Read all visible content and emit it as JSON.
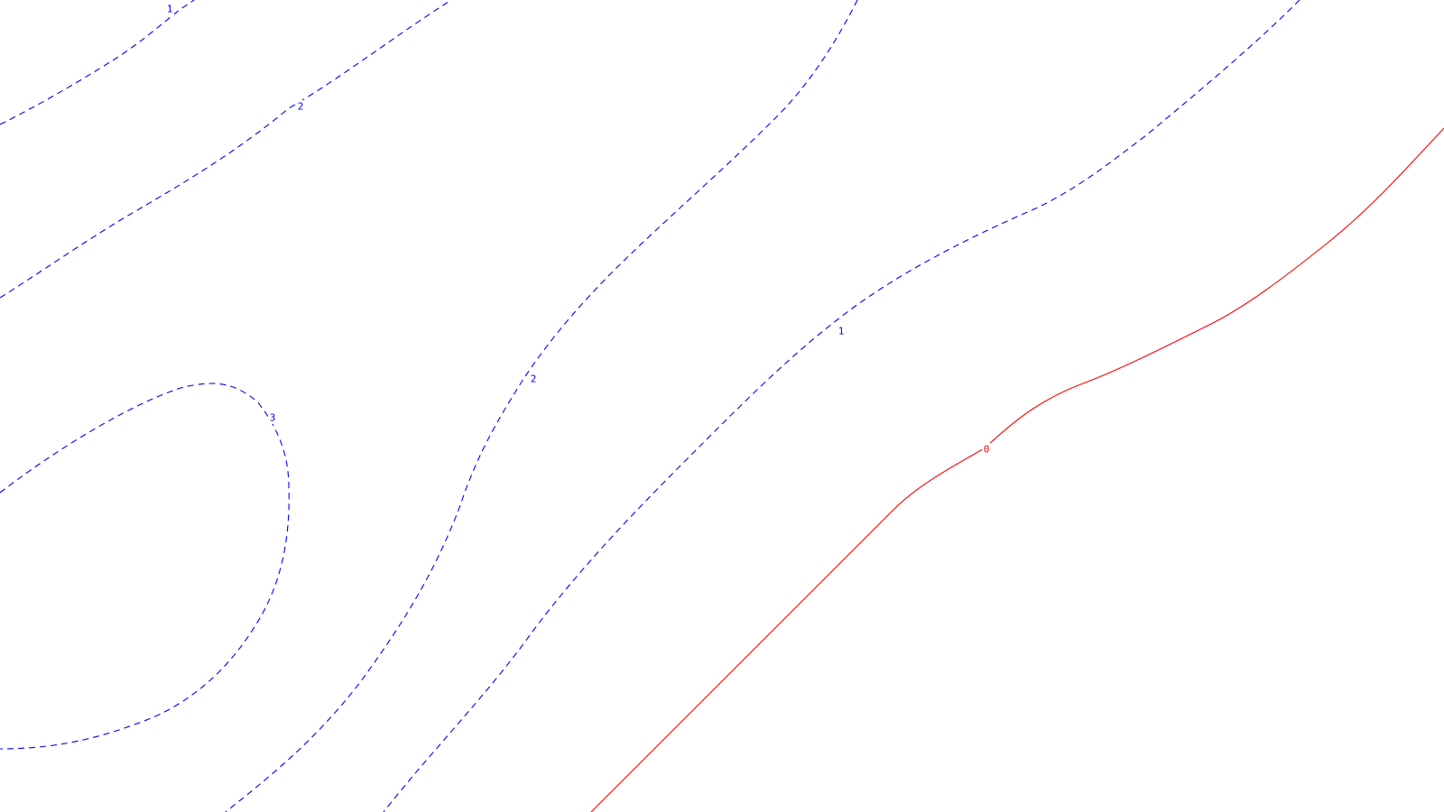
{
  "map": {
    "background_color": "#ffffff",
    "negative_and_positive_style": {
      "positive_color": "#0000ff",
      "positive_linestyle": "dashed",
      "zero_color": "#ff0000",
      "zero_linestyle": "solid"
    },
    "contours": [
      {
        "id": "c1a",
        "level": "1",
        "label": "1",
        "color": "#0000ff",
        "style": "dashed"
      },
      {
        "id": "c2a",
        "level": "2",
        "label": "2",
        "color": "#0000ff",
        "style": "dashed"
      },
      {
        "id": "c3",
        "level": "3",
        "label": "3",
        "color": "#0000ff",
        "style": "dashed"
      },
      {
        "id": "c2b",
        "level": "2",
        "label": "2",
        "color": "#0000ff",
        "style": "dashed"
      },
      {
        "id": "c1b",
        "level": "1",
        "label": "1",
        "color": "#0000ff",
        "style": "dashed"
      },
      {
        "id": "c0",
        "level": "0",
        "label": "0",
        "color": "#ff0000",
        "style": "solid"
      }
    ]
  }
}
